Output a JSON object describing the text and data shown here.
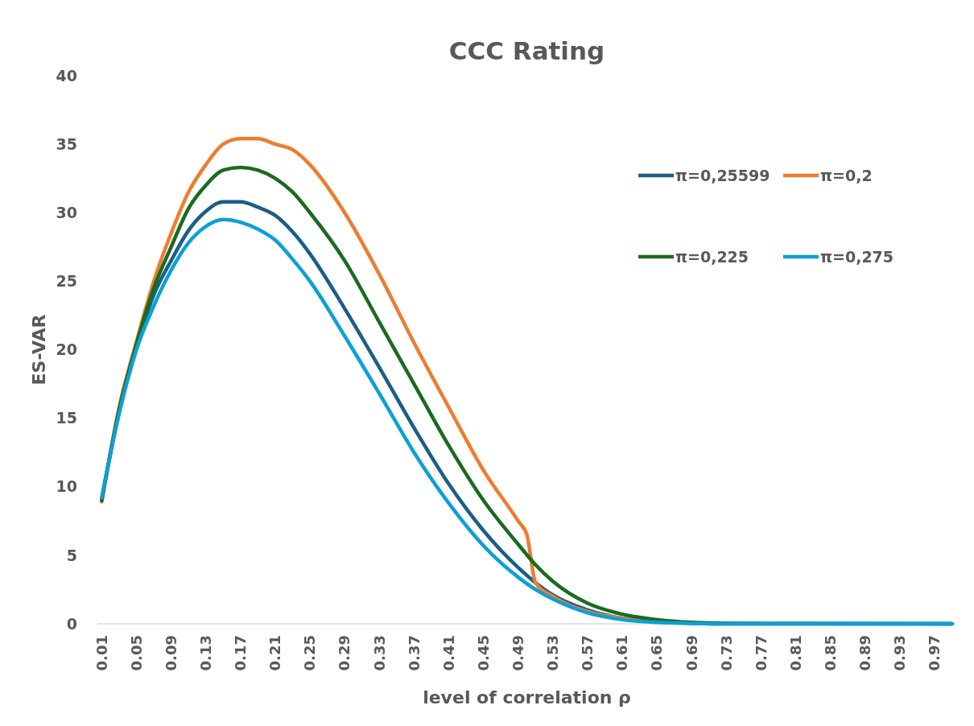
{
  "chart_data": {
    "type": "line",
    "title": "CCC Rating",
    "xlabel": "level of correlation ρ",
    "ylabel": "ES-VAR",
    "xlim": [
      0.005,
      0.995
    ],
    "xticks": [
      0.01,
      0.05,
      0.09,
      0.13,
      0.17,
      0.21,
      0.25,
      0.29,
      0.33,
      0.37,
      0.41,
      0.45,
      0.49,
      0.53,
      0.57,
      0.61,
      0.65,
      0.69,
      0.73,
      0.77,
      0.81,
      0.85,
      0.89,
      0.93,
      0.97
    ],
    "ylim": [
      0,
      40
    ],
    "yticks": [
      0,
      5,
      10,
      15,
      20,
      25,
      30,
      35,
      40
    ],
    "grid": false,
    "legend": "top right",
    "marker": "none",
    "line_style": "solid",
    "series": [
      {
        "name": "π=0,25599",
        "color": "#1b5e86",
        "x": [
          0.01,
          0.03,
          0.05,
          0.07,
          0.09,
          0.11,
          0.13,
          0.15,
          0.17,
          0.19,
          0.21,
          0.23,
          0.25,
          0.29,
          0.33,
          0.37,
          0.41,
          0.45,
          0.49,
          0.51,
          0.53,
          0.57,
          0.61,
          0.65,
          0.69,
          0.73,
          0.99
        ],
        "values": [
          9.1,
          15.5,
          20.2,
          24,
          26.5,
          28.7,
          30.1,
          30.8,
          30.8,
          30.4,
          29.8,
          28.6,
          27,
          23,
          18.7,
          14.3,
          10.2,
          6.8,
          4.1,
          3,
          2.1,
          1,
          0.4,
          0.15,
          0.05,
          0,
          0
        ]
      },
      {
        "name": "π=0,2",
        "color": "#ed7d31",
        "x": [
          0.01,
          0.03,
          0.05,
          0.07,
          0.09,
          0.11,
          0.13,
          0.15,
          0.17,
          0.19,
          0.21,
          0.23,
          0.25,
          0.29,
          0.33,
          0.37,
          0.41,
          0.45,
          0.49,
          0.5,
          0.51,
          0.53,
          0.57,
          0.61,
          0.65
        ],
        "values": [
          8.9,
          15.8,
          20.6,
          25,
          28.5,
          31.5,
          33.5,
          35,
          35.4,
          35.4,
          35,
          34.6,
          33.5,
          30,
          25.5,
          20.5,
          15.8,
          11.2,
          7.5,
          6.5,
          3,
          2,
          0.9,
          0.4,
          0.15
        ]
      },
      {
        "name": "π=0,225",
        "color": "#1a6b1f",
        "x": [
          0.01,
          0.03,
          0.05,
          0.07,
          0.09,
          0.11,
          0.13,
          0.15,
          0.17,
          0.19,
          0.21,
          0.23,
          0.25,
          0.29,
          0.33,
          0.37,
          0.41,
          0.45,
          0.49,
          0.51,
          0.53,
          0.57,
          0.61,
          0.65,
          0.69,
          0.73,
          0.99
        ],
        "values": [
          9,
          15.6,
          20.4,
          24.5,
          27.5,
          30.3,
          32,
          33.1,
          33.3,
          33.1,
          32.5,
          31.5,
          30,
          26.5,
          22,
          17.5,
          13,
          9,
          5.8,
          4.3,
          3.1,
          1.5,
          0.7,
          0.3,
          0.1,
          0.03,
          0
        ]
      },
      {
        "name": "π=0,275",
        "color": "#0ba0d8",
        "x": [
          0.01,
          0.03,
          0.05,
          0.07,
          0.09,
          0.11,
          0.13,
          0.15,
          0.17,
          0.19,
          0.21,
          0.23,
          0.25,
          0.29,
          0.33,
          0.37,
          0.41,
          0.45,
          0.49,
          0.51,
          0.53,
          0.57,
          0.61,
          0.65,
          0.69,
          0.73,
          0.99
        ],
        "values": [
          9.2,
          15.3,
          20,
          23.2,
          25.8,
          27.8,
          29,
          29.5,
          29.3,
          28.8,
          28,
          26.6,
          25,
          21,
          16.8,
          12.5,
          8.8,
          5.7,
          3.4,
          2.5,
          1.8,
          0.8,
          0.3,
          0.1,
          0.03,
          0,
          0
        ]
      }
    ]
  }
}
